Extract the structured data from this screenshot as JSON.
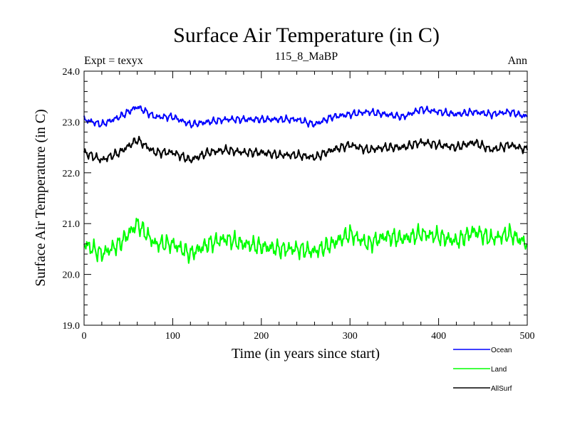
{
  "chart_data": {
    "type": "line",
    "title": "Surface Air Temperature (in C)",
    "subtitle": "115_8_MaBP",
    "left_label": "Expt = texyx",
    "right_label": "Ann",
    "xlabel": "Time (in years since start)",
    "ylabel": "Surface Air Temperature (in C)",
    "xlim": [
      0,
      500
    ],
    "ylim": [
      19.0,
      24.0
    ],
    "x_ticks": [
      0,
      100,
      200,
      300,
      400,
      500
    ],
    "x_tick_labels": [
      "0",
      "100",
      "200",
      "300",
      "400",
      "500"
    ],
    "y_ticks": [
      19.0,
      20.0,
      21.0,
      22.0,
      23.0,
      24.0
    ],
    "y_tick_labels": [
      "19.0",
      "20.0",
      "21.0",
      "22.0",
      "23.0",
      "24.0"
    ],
    "grid": false,
    "legend_position": "bottom-right",
    "x": [
      0,
      20,
      40,
      60,
      80,
      100,
      120,
      140,
      160,
      180,
      200,
      220,
      240,
      260,
      280,
      300,
      320,
      340,
      360,
      380,
      400,
      420,
      440,
      460,
      480,
      500
    ],
    "series": [
      {
        "name": "Ocean",
        "color": "#0000ff",
        "values": [
          23.05,
          22.95,
          23.1,
          23.3,
          23.1,
          23.1,
          22.95,
          23.0,
          23.05,
          23.05,
          23.05,
          23.05,
          23.05,
          22.95,
          23.1,
          23.15,
          23.2,
          23.15,
          23.1,
          23.25,
          23.2,
          23.15,
          23.2,
          23.15,
          23.2,
          23.1
        ]
      },
      {
        "name": "Land",
        "color": "#00ff00",
        "values": [
          20.6,
          20.4,
          20.6,
          21.0,
          20.6,
          20.6,
          20.4,
          20.6,
          20.7,
          20.6,
          20.55,
          20.5,
          20.5,
          20.45,
          20.6,
          20.8,
          20.6,
          20.75,
          20.7,
          20.8,
          20.75,
          20.65,
          20.85,
          20.7,
          20.8,
          20.6
        ]
      },
      {
        "name": "AllSurf",
        "color": "#000000",
        "values": [
          22.4,
          22.25,
          22.4,
          22.65,
          22.4,
          22.4,
          22.25,
          22.4,
          22.45,
          22.4,
          22.4,
          22.35,
          22.35,
          22.3,
          22.45,
          22.55,
          22.45,
          22.5,
          22.5,
          22.6,
          22.55,
          22.5,
          22.6,
          22.45,
          22.55,
          22.45
        ]
      }
    ]
  }
}
